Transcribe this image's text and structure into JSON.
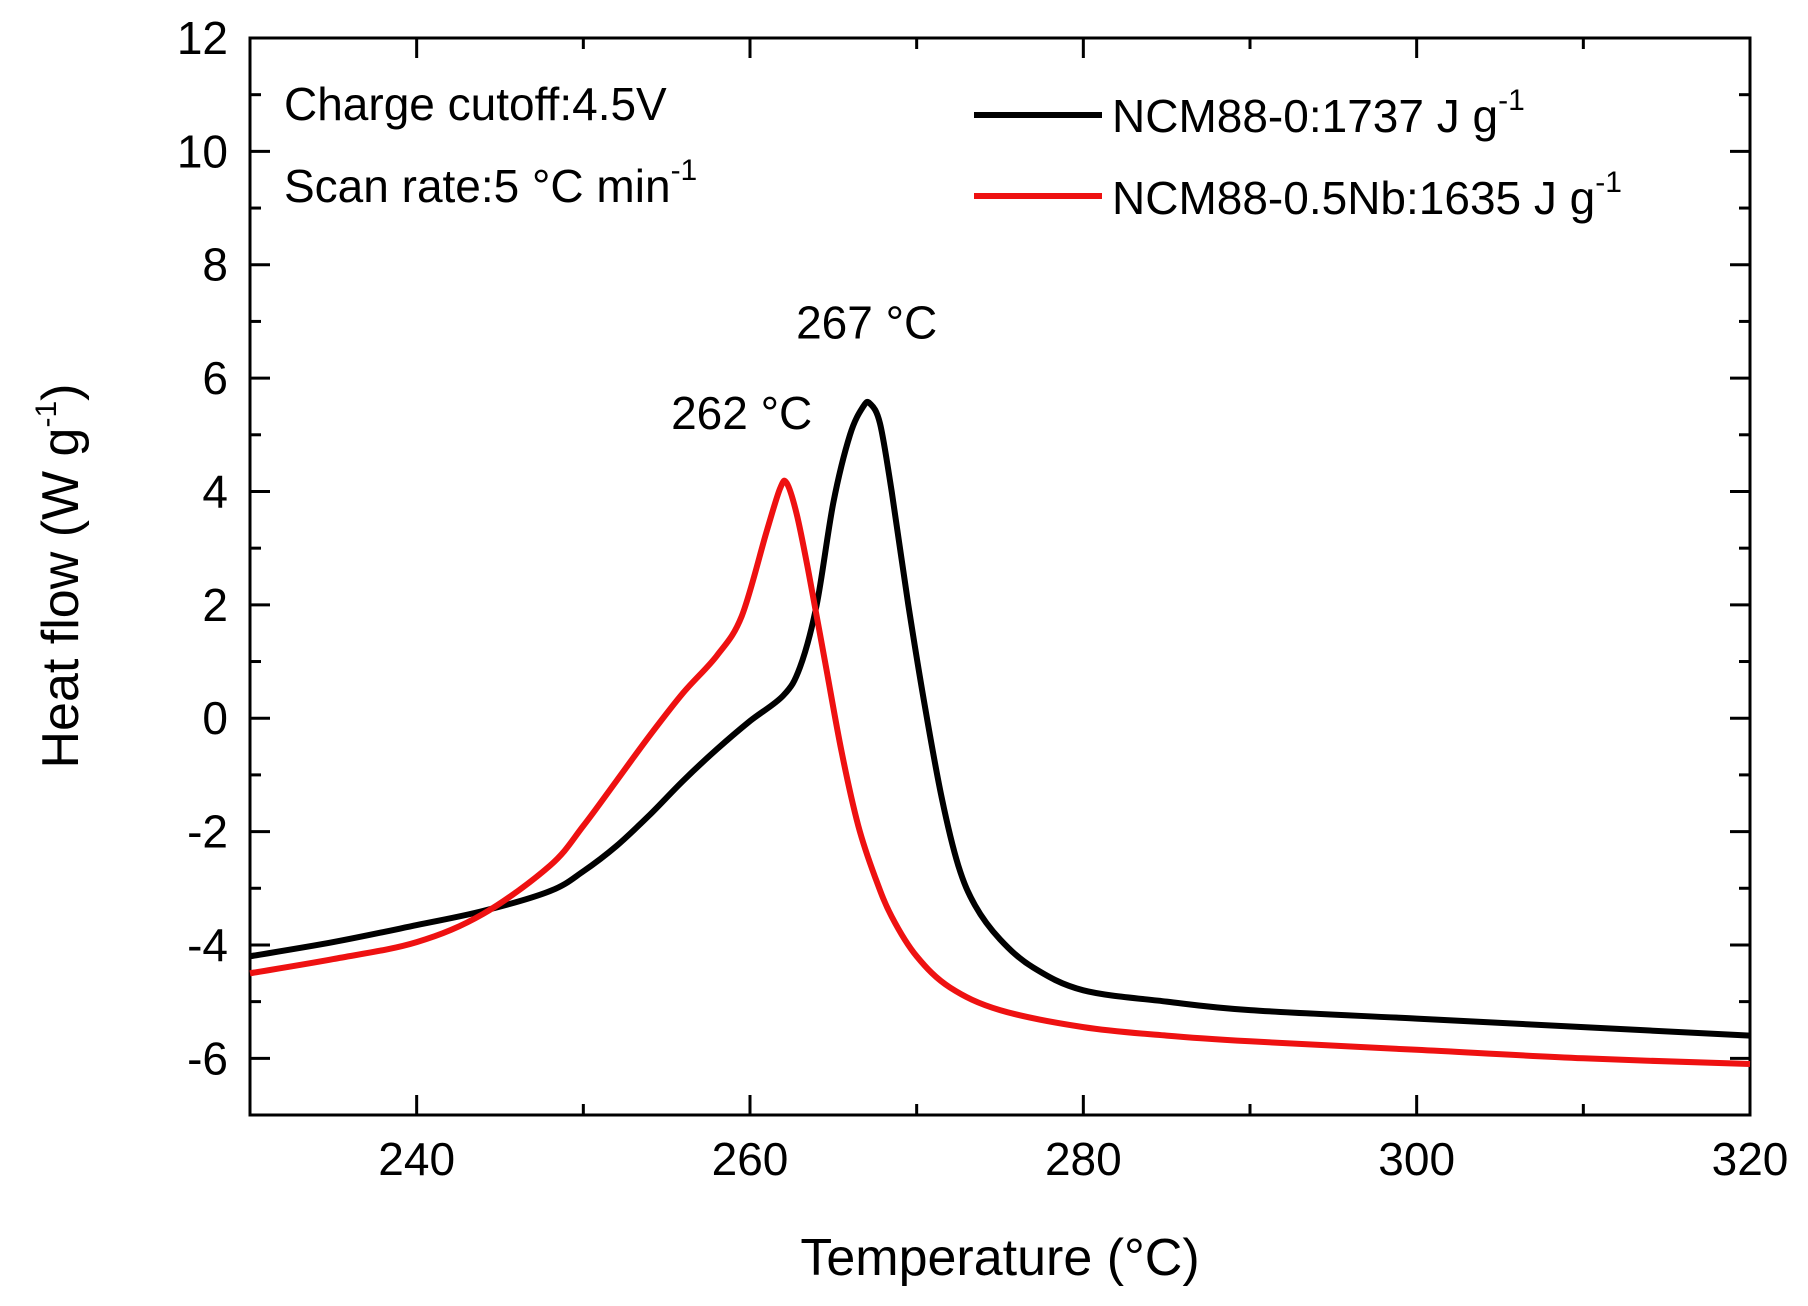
{
  "chart_data": {
    "type": "line",
    "xlabel": "Temperature (°C)",
    "ylabel_main": "Heat flow (W g",
    "ylabel_sup": "-1",
    "ylabel_close": ")",
    "xlim": [
      230,
      320
    ],
    "ylim": [
      -7,
      12
    ],
    "xticks": [
      240,
      260,
      280,
      300,
      320
    ],
    "yticks": [
      -6,
      -4,
      -2,
      0,
      2,
      4,
      6,
      8,
      10,
      12
    ],
    "conditions": {
      "cutoff": "Charge cutoff:4.5V",
      "scan_main": "Scan rate:5 °C min",
      "scan_sup": "-1"
    },
    "annotations": [
      {
        "text": "267 °C",
        "x": 267.0,
        "y": 6.7
      },
      {
        "text": "262 °C",
        "x": 259.5,
        "y": 5.1
      }
    ],
    "series": [
      {
        "name": "NCM88-0:1737 J g",
        "name_sup": "-1",
        "color": "#000000",
        "x": [
          230,
          235,
          240,
          244,
          248,
          250,
          252,
          254,
          256,
          258,
          260,
          262,
          263,
          264,
          265,
          266,
          266.8,
          267.2,
          267.8,
          268.5,
          269.5,
          270.5,
          271.5,
          272.5,
          273.5,
          275,
          277,
          280,
          285,
          290,
          300,
          310,
          320
        ],
        "y": [
          -4.2,
          -3.95,
          -3.65,
          -3.4,
          -3.05,
          -2.7,
          -2.25,
          -1.7,
          -1.1,
          -0.55,
          -0.05,
          0.4,
          0.9,
          2.0,
          3.8,
          5.0,
          5.5,
          5.55,
          5.2,
          4.0,
          2.0,
          0.2,
          -1.4,
          -2.6,
          -3.3,
          -3.9,
          -4.4,
          -4.8,
          -5.0,
          -5.15,
          -5.3,
          -5.45,
          -5.6
        ]
      },
      {
        "name": "NCM88-0.5Nb:1635 J g",
        "name_sup": "-1",
        "color": "#ee1111",
        "x": [
          230,
          235,
          240,
          244,
          248,
          250,
          252,
          254,
          256,
          258,
          259.5,
          261,
          261.8,
          262.2,
          262.8,
          263.5,
          264.5,
          265.5,
          266.5,
          267.5,
          268.5,
          270,
          272,
          275,
          280,
          285,
          290,
          300,
          310,
          320
        ],
        "y": [
          -4.5,
          -4.25,
          -3.95,
          -3.45,
          -2.6,
          -1.9,
          -1.1,
          -0.3,
          0.45,
          1.1,
          1.8,
          3.3,
          4.05,
          4.15,
          3.6,
          2.6,
          1.0,
          -0.6,
          -1.9,
          -2.8,
          -3.5,
          -4.2,
          -4.75,
          -5.15,
          -5.45,
          -5.6,
          -5.7,
          -5.85,
          -6.0,
          -6.1
        ]
      }
    ]
  }
}
